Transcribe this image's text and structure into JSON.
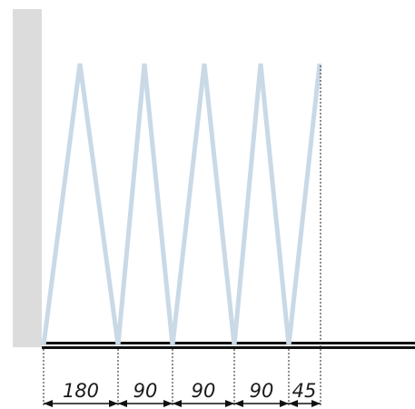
{
  "colors": {
    "wall": "#dcdcdc",
    "ground": "#111111",
    "zigzag": "#c9d9e6",
    "dimension": "#111111",
    "extension": "#222222"
  },
  "dimensions": {
    "segments": [
      {
        "label": "180",
        "value": 180
      },
      {
        "label": "90",
        "value": 90
      },
      {
        "label": "90",
        "value": 90
      },
      {
        "label": "90",
        "value": 90
      },
      {
        "label": "45",
        "value": 45
      }
    ]
  }
}
